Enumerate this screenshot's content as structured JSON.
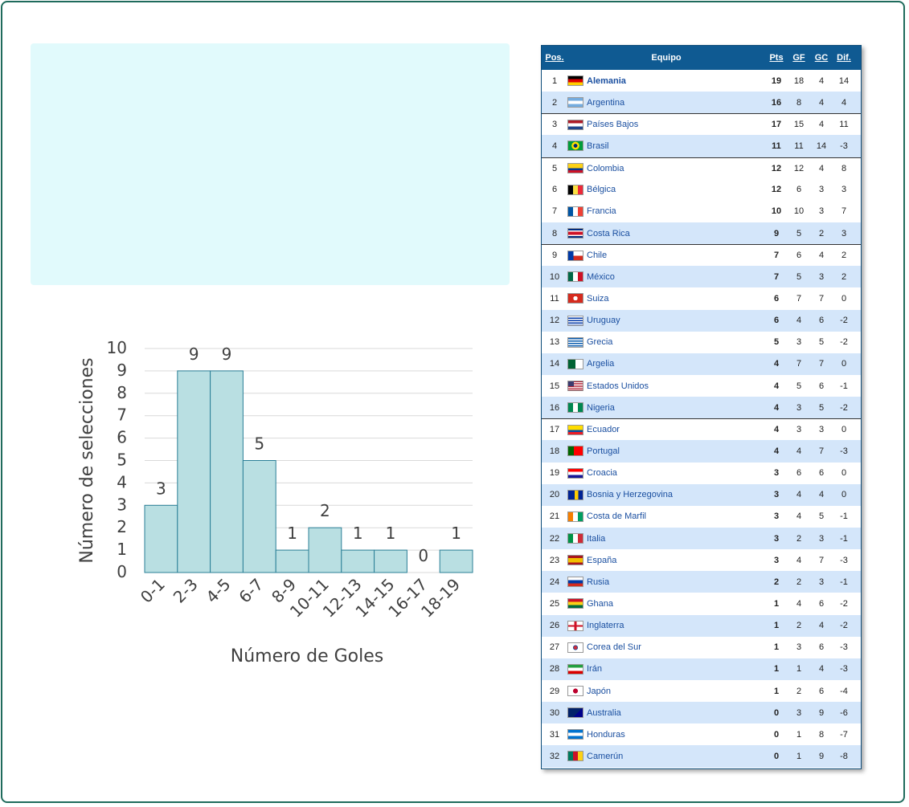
{
  "chart_data": {
    "type": "bar",
    "xlabel": "Número de Goles",
    "ylabel": "Número de selecciones",
    "ylim": [
      0,
      10
    ],
    "yticks": [
      0,
      1,
      2,
      3,
      4,
      5,
      6,
      7,
      8,
      9,
      10
    ],
    "categories": [
      "0-1",
      "2-3",
      "4-5",
      "6-7",
      "8-9",
      "10-11",
      "12-13",
      "14-15",
      "16-17",
      "18-19"
    ],
    "values": [
      3,
      9,
      9,
      5,
      1,
      2,
      1,
      1,
      0,
      1
    ],
    "bar_color": "#b9dfe2",
    "bar_edge": "#2a7f97",
    "grid": true
  },
  "table": {
    "headers": {
      "pos": "Pos.",
      "team": "Equipo",
      "pts": "Pts",
      "gf": "GF",
      "gc": "GC",
      "dif": "Dif."
    },
    "rows": [
      {
        "pos": "1",
        "team": "Alemania",
        "pts": "19",
        "gf": "18",
        "gc": "4",
        "dif": "14",
        "flag": "germany"
      },
      {
        "pos": "2",
        "team": "Argentina",
        "pts": "16",
        "gf": "8",
        "gc": "4",
        "dif": "4",
        "flag": "argentina"
      },
      {
        "pos": "3",
        "team": "Países Bajos",
        "pts": "17",
        "gf": "15",
        "gc": "4",
        "dif": "11",
        "flag": "netherlands"
      },
      {
        "pos": "4",
        "team": "Brasil",
        "pts": "11",
        "gf": "11",
        "gc": "14",
        "dif": "-3",
        "flag": "brazil"
      },
      {
        "pos": "5",
        "team": "Colombia",
        "pts": "12",
        "gf": "12",
        "gc": "4",
        "dif": "8",
        "flag": "colombia"
      },
      {
        "pos": "6",
        "team": "Bélgica",
        "pts": "12",
        "gf": "6",
        "gc": "3",
        "dif": "3",
        "flag": "belgium"
      },
      {
        "pos": "7",
        "team": "Francia",
        "pts": "10",
        "gf": "10",
        "gc": "3",
        "dif": "7",
        "flag": "france"
      },
      {
        "pos": "8",
        "team": "Costa Rica",
        "pts": "9",
        "gf": "5",
        "gc": "2",
        "dif": "3",
        "flag": "costa-rica"
      },
      {
        "pos": "9",
        "team": "Chile",
        "pts": "7",
        "gf": "6",
        "gc": "4",
        "dif": "2",
        "flag": "chile"
      },
      {
        "pos": "10",
        "team": "México",
        "pts": "7",
        "gf": "5",
        "gc": "3",
        "dif": "2",
        "flag": "mexico"
      },
      {
        "pos": "11",
        "team": "Suiza",
        "pts": "6",
        "gf": "7",
        "gc": "7",
        "dif": "0",
        "flag": "switzerland"
      },
      {
        "pos": "12",
        "team": "Uruguay",
        "pts": "6",
        "gf": "4",
        "gc": "6",
        "dif": "-2",
        "flag": "uruguay"
      },
      {
        "pos": "13",
        "team": "Grecia",
        "pts": "5",
        "gf": "3",
        "gc": "5",
        "dif": "-2",
        "flag": "greece"
      },
      {
        "pos": "14",
        "team": "Argelia",
        "pts": "4",
        "gf": "7",
        "gc": "7",
        "dif": "0",
        "flag": "algeria"
      },
      {
        "pos": "15",
        "team": "Estados Unidos",
        "pts": "4",
        "gf": "5",
        "gc": "6",
        "dif": "-1",
        "flag": "usa"
      },
      {
        "pos": "16",
        "team": "Nigeria",
        "pts": "4",
        "gf": "3",
        "gc": "5",
        "dif": "-2",
        "flag": "nigeria"
      },
      {
        "pos": "17",
        "team": "Ecuador",
        "pts": "4",
        "gf": "3",
        "gc": "3",
        "dif": "0",
        "flag": "ecuador"
      },
      {
        "pos": "18",
        "team": "Portugal",
        "pts": "4",
        "gf": "4",
        "gc": "7",
        "dif": "-3",
        "flag": "portugal"
      },
      {
        "pos": "19",
        "team": "Croacia",
        "pts": "3",
        "gf": "6",
        "gc": "6",
        "dif": "0",
        "flag": "croatia"
      },
      {
        "pos": "20",
        "team": "Bosnia y Herzegovina",
        "pts": "3",
        "gf": "4",
        "gc": "4",
        "dif": "0",
        "flag": "bosnia"
      },
      {
        "pos": "21",
        "team": "Costa de Marfil",
        "pts": "3",
        "gf": "4",
        "gc": "5",
        "dif": "-1",
        "flag": "ivory-coast"
      },
      {
        "pos": "22",
        "team": "Italia",
        "pts": "3",
        "gf": "2",
        "gc": "3",
        "dif": "-1",
        "flag": "italy"
      },
      {
        "pos": "23",
        "team": "España",
        "pts": "3",
        "gf": "4",
        "gc": "7",
        "dif": "-3",
        "flag": "spain"
      },
      {
        "pos": "24",
        "team": "Rusia",
        "pts": "2",
        "gf": "2",
        "gc": "3",
        "dif": "-1",
        "flag": "russia"
      },
      {
        "pos": "25",
        "team": "Ghana",
        "pts": "1",
        "gf": "4",
        "gc": "6",
        "dif": "-2",
        "flag": "ghana"
      },
      {
        "pos": "26",
        "team": "Inglaterra",
        "pts": "1",
        "gf": "2",
        "gc": "4",
        "dif": "-2",
        "flag": "england"
      },
      {
        "pos": "27",
        "team": "Corea del Sur",
        "pts": "1",
        "gf": "3",
        "gc": "6",
        "dif": "-3",
        "flag": "south-korea"
      },
      {
        "pos": "28",
        "team": "Irán",
        "pts": "1",
        "gf": "1",
        "gc": "4",
        "dif": "-3",
        "flag": "iran"
      },
      {
        "pos": "29",
        "team": "Japón",
        "pts": "1",
        "gf": "2",
        "gc": "6",
        "dif": "-4",
        "flag": "japan"
      },
      {
        "pos": "30",
        "team": "Australia",
        "pts": "0",
        "gf": "3",
        "gc": "9",
        "dif": "-6",
        "flag": "australia"
      },
      {
        "pos": "31",
        "team": "Honduras",
        "pts": "0",
        "gf": "1",
        "gc": "8",
        "dif": "-7",
        "flag": "honduras"
      },
      {
        "pos": "32",
        "team": "Camerún",
        "pts": "0",
        "gf": "1",
        "gc": "9",
        "dif": "-8",
        "flag": "cameroon"
      }
    ]
  }
}
